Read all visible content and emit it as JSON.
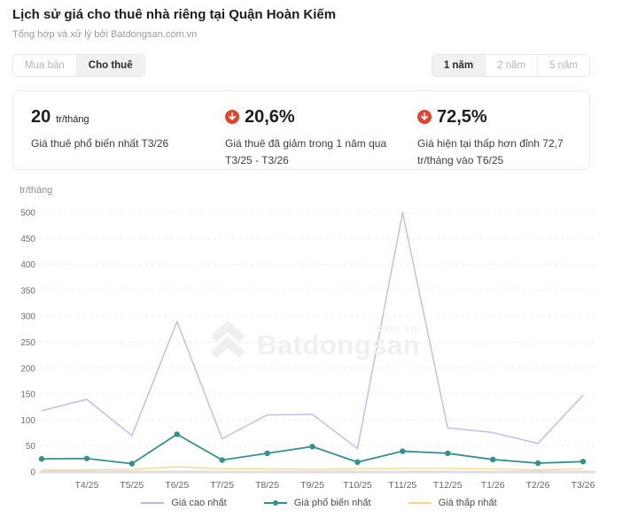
{
  "page": {
    "title": "Lịch sử giá cho thuê nhà riêng tại Quận Hoàn Kiếm",
    "subtitle": "Tổng hợp và xử lý bởi Batdongsan.com.vn"
  },
  "toggles": {
    "transaction": [
      {
        "label": "Mua bán",
        "active": false
      },
      {
        "label": "Cho thuê",
        "active": true
      }
    ],
    "range": [
      {
        "label": "1 năm",
        "active": true
      },
      {
        "label": "2 năm",
        "active": false
      },
      {
        "label": "5 năm",
        "active": false
      }
    ]
  },
  "stats": [
    {
      "value": "20",
      "unit": "tr/tháng",
      "desc": "Giá thuê phổ biến nhất T3/26"
    },
    {
      "value": "20,6%",
      "icon": "arrow-down-circle",
      "desc": "Giá thuê đã giảm trong 1 năm qua T3/25 - T3/26"
    },
    {
      "value": "72,5%",
      "icon": "arrow-down-circle",
      "desc": "Giá hiện tại thấp hơn đỉnh 72,7 tr/tháng vào T6/25"
    }
  ],
  "watermark": {
    "brand": "Batdongsan",
    "domain": ".com.vn"
  },
  "colors": {
    "accent_red": "#e0432e",
    "highest_line": "#c9b6e2",
    "common_line": "#34908b",
    "lowest_line": "#f7d78e",
    "gridline": "#ececec",
    "zero_axis": "#dedede"
  },
  "chart_data": {
    "type": "line",
    "y_axis_label": "tr/tháng",
    "categories": [
      "",
      "T4/25",
      "T5/25",
      "T6/25",
      "T7/25",
      "T8/25",
      "T9/25",
      "T10/25",
      "T11/25",
      "T12/25",
      "T1/26",
      "T2/26",
      "T3/26"
    ],
    "series": [
      {
        "name": "Giá cao nhất",
        "color": "#c9b6e2",
        "markers": false,
        "values": [
          118,
          140,
          70,
          290,
          64,
          110,
          111,
          45,
          500,
          85,
          76,
          55,
          148
        ]
      },
      {
        "name": "Giá phổ biến nhất",
        "color": "#34908b",
        "markers": true,
        "values": [
          25.2,
          26,
          16,
          72.7,
          23,
          36,
          49,
          19,
          40,
          36,
          24,
          17,
          20
        ]
      },
      {
        "name": "Giá thấp nhất",
        "color": "#f7d78e",
        "markers": false,
        "values": [
          4,
          4,
          5,
          10,
          6,
          6,
          5,
          6,
          7,
          7,
          6,
          4,
          6
        ]
      }
    ],
    "ylim": [
      0,
      500
    ],
    "ytick_step": 50,
    "grid": true,
    "legend_position": "bottom"
  }
}
